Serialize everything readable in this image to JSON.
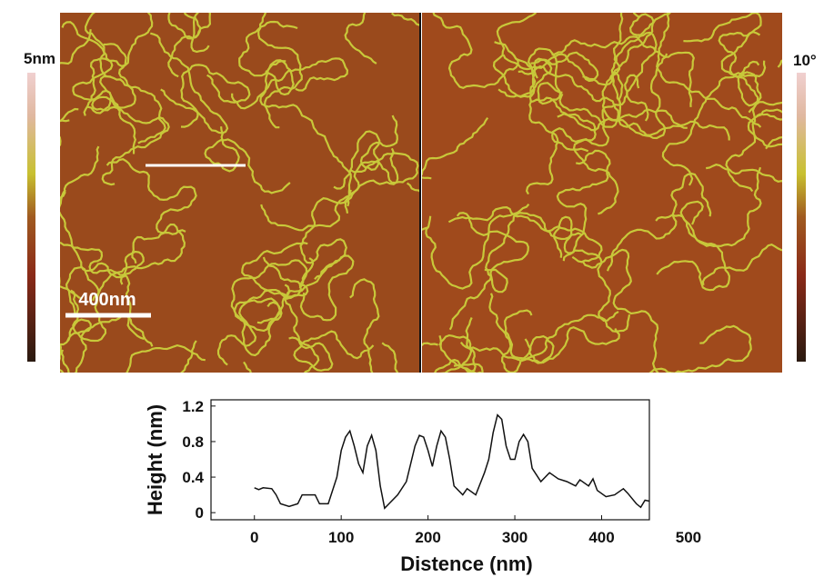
{
  "images": {
    "height_scale": "5nm",
    "phase_scale": "10°",
    "scale_bar": "400nm"
  },
  "chart_data": {
    "type": "line",
    "xlabel": "Distence (nm)",
    "ylabel": "Height (nm)",
    "xlim": [
      -50,
      455
    ],
    "xticks": [
      0,
      100,
      200,
      300,
      400,
      500
    ],
    "ylim": [
      -0.08,
      1.27
    ],
    "yticks": [
      0.0,
      0.4,
      0.8,
      1.2
    ],
    "color": "#111111",
    "x": [
      0,
      5,
      10,
      20,
      25,
      30,
      40,
      50,
      55,
      60,
      70,
      75,
      85,
      95,
      100,
      105,
      110,
      115,
      120,
      125,
      130,
      135,
      140,
      145,
      150,
      155,
      165,
      175,
      185,
      190,
      195,
      200,
      205,
      210,
      215,
      220,
      225,
      230,
      240,
      245,
      255,
      265,
      270,
      275,
      280,
      285,
      290,
      295,
      300,
      305,
      310,
      315,
      320,
      330,
      340,
      350,
      360,
      370,
      375,
      385,
      390,
      395,
      405,
      415,
      425,
      430,
      440,
      445,
      450,
      455
    ],
    "values": [
      0.28,
      0.26,
      0.28,
      0.27,
      0.2,
      0.1,
      0.07,
      0.1,
      0.2,
      0.2,
      0.2,
      0.1,
      0.1,
      0.4,
      0.7,
      0.85,
      0.92,
      0.75,
      0.55,
      0.45,
      0.75,
      0.87,
      0.7,
      0.3,
      0.05,
      0.1,
      0.2,
      0.35,
      0.75,
      0.87,
      0.85,
      0.7,
      0.52,
      0.75,
      0.92,
      0.85,
      0.6,
      0.3,
      0.2,
      0.27,
      0.2,
      0.45,
      0.6,
      0.9,
      1.1,
      1.05,
      0.75,
      0.6,
      0.6,
      0.8,
      0.88,
      0.8,
      0.5,
      0.35,
      0.45,
      0.38,
      0.35,
      0.3,
      0.37,
      0.3,
      0.38,
      0.25,
      0.18,
      0.2,
      0.27,
      0.22,
      0.1,
      0.06,
      0.14,
      0.13
    ]
  }
}
